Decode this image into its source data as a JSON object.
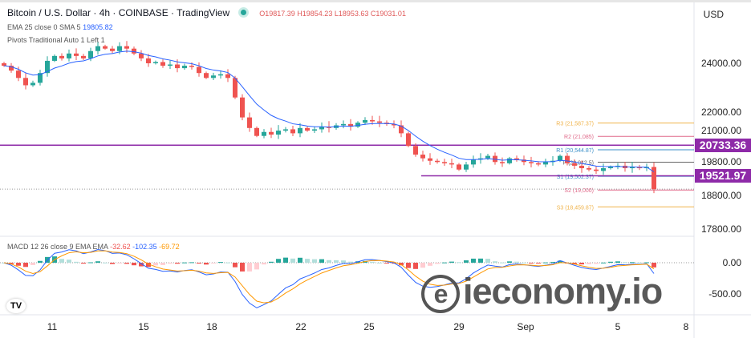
{
  "header": {
    "title": "Bitcoin / U.S. Dollar · 4h · COINBASE · TradingView",
    "open": "O19817.39",
    "high": "H19854.23",
    "low": "L18953.63",
    "close": "C19031.01"
  },
  "indicators": {
    "ema_label": "EMA 25 close 0 SMA 5",
    "ema_value": "19805.82",
    "pivots_label": "Pivots Traditional Auto 1 Left 1",
    "macd_label": "MACD 12 26 close 9 EMA EMA",
    "macd_hist": "-32.62",
    "macd_line": "-102.35",
    "macd_signal": "-69.72"
  },
  "currency": "USD",
  "watermark": "ieconomy.io",
  "colors": {
    "up": "#26a69a",
    "down": "#ef5350",
    "ema": "#2962ff",
    "signal": "#ff9800",
    "level": "#8e2aa8"
  },
  "chart_data": {
    "type": "candlestick",
    "y_ticks": [
      "24000.00",
      "22000.00",
      "21000.00",
      "19800.00",
      "18800.00",
      "17800.00"
    ],
    "x_ticks": [
      "11",
      "15",
      "18",
      "22",
      "25",
      "29",
      "Sep",
      "5",
      "8"
    ],
    "macd_ticks": [
      "0.00",
      "-500.00"
    ],
    "levels": [
      {
        "label": "20733.36",
        "value": 20733.36
      },
      {
        "label": "19521.97",
        "value": 19521.97
      }
    ],
    "pivots": [
      {
        "name": "R3",
        "label": "R3 (21,587.37)",
        "value": 21587.37,
        "color": "#f0b34a"
      },
      {
        "name": "R2",
        "label": "R2 (21,085)",
        "value": 21085,
        "color": "#e06a8a"
      },
      {
        "name": "R1",
        "label": "R1 (20,544.87)",
        "value": 20544.87,
        "color": "#3a8fc8"
      },
      {
        "name": "P",
        "label": "P (20,042.5)",
        "value": 20042.5,
        "color": "#666666"
      },
      {
        "name": "S1",
        "label": "S1 (19,502.37)",
        "value": 19502.37,
        "color": "#3a8fc8"
      },
      {
        "name": "S2",
        "label": "S2 (19,000)",
        "value": 19000,
        "color": "#e06a8a"
      },
      {
        "name": "S3",
        "label": "S3 (18,459.87)",
        "value": 18459.87,
        "color": "#f0b34a"
      }
    ],
    "closes": [
      23900,
      23700,
      23400,
      23100,
      23200,
      23600,
      24100,
      24300,
      24200,
      24400,
      24300,
      24200,
      24500,
      24700,
      24600,
      24500,
      24700,
      24600,
      24400,
      24200,
      24000,
      24050,
      23900,
      23950,
      23800,
      23900,
      23850,
      23600,
      23400,
      23500,
      23550,
      23400,
      22600,
      21800,
      21400,
      21100,
      21250,
      21150,
      21300,
      21350,
      21200,
      21400,
      21300,
      21350,
      21450,
      21400,
      21500,
      21550,
      21450,
      21600,
      21700,
      21650,
      21600,
      21550,
      21500,
      21200,
      20700,
      20350,
      20200,
      20100,
      20050,
      20000,
      19950,
      19750,
      19950,
      20150,
      20200,
      20300,
      20050,
      20000,
      20200,
      20150,
      20050,
      20000,
      19950,
      20050,
      20100,
      20300,
      20000,
      19900,
      19800,
      19750,
      19700,
      19800,
      19850,
      19900,
      19800,
      19850,
      19800,
      19850,
      19031
    ]
  }
}
